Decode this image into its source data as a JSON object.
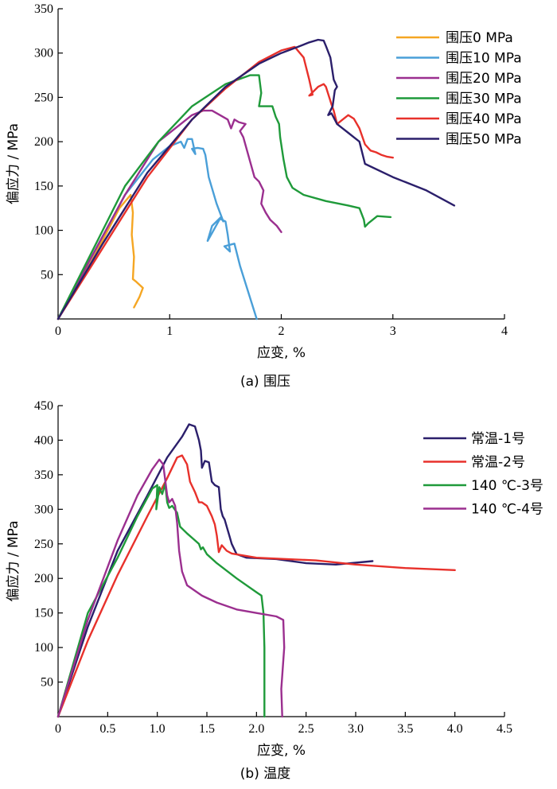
{
  "chart_data": [
    {
      "type": "line",
      "caption": "(a) 围压",
      "xlabel": "应变, %",
      "ylabel": "偏应力 / MPa",
      "xlim": [
        0,
        4
      ],
      "ylim": [
        0,
        350
      ],
      "xticks": [
        0,
        1,
        2,
        3,
        4
      ],
      "yticks": [
        50,
        100,
        150,
        200,
        250,
        300,
        350
      ],
      "xtick_labels": [
        "0",
        "1",
        "2",
        "3",
        "4"
      ],
      "ytick_labels": [
        "50",
        "100",
        "150",
        "200",
        "250",
        "300",
        "350"
      ],
      "legend_position": "top-right",
      "grid": false,
      "series": [
        {
          "name": "围压0 MPa",
          "color": "#f5a623",
          "x": [
            0,
            0.3,
            0.55,
            0.65,
            0.67,
            0.66,
            0.68,
            0.67,
            0.7,
            0.76,
            0.73,
            0.68
          ],
          "y": [
            0,
            65,
            125,
            140,
            120,
            95,
            70,
            45,
            42,
            35,
            25,
            13
          ]
        },
        {
          "name": "围压10 MPa",
          "color": "#4a9fd8",
          "x": [
            0,
            0.3,
            0.6,
            0.85,
            1.0,
            1.1,
            1.13,
            1.16,
            1.2,
            1.23,
            1.2,
            1.25,
            1.3,
            1.32,
            1.35,
            1.42,
            1.48,
            1.46,
            1.38,
            1.34,
            1.38,
            1.45,
            1.5,
            1.52,
            1.54,
            1.49,
            1.58,
            1.63,
            1.78
          ],
          "y": [
            0,
            70,
            140,
            180,
            195,
            200,
            193,
            203,
            203,
            186,
            192,
            193,
            192,
            185,
            160,
            130,
            110,
            115,
            105,
            88,
            97,
            113,
            110,
            95,
            76,
            82,
            85,
            60,
            0
          ]
        },
        {
          "name": "围压20 MPa",
          "color": "#9b2f8f",
          "x": [
            0,
            0.3,
            0.6,
            0.9,
            1.2,
            1.3,
            1.38,
            1.45,
            1.52,
            1.55,
            1.58,
            1.62,
            1.68,
            1.63,
            1.66,
            1.72,
            1.76,
            1.8,
            1.84,
            1.82,
            1.86,
            1.9,
            1.96,
            2.0
          ],
          "y": [
            0,
            70,
            140,
            200,
            230,
            235,
            235,
            230,
            225,
            215,
            225,
            222,
            220,
            212,
            205,
            178,
            160,
            155,
            145,
            130,
            120,
            112,
            105,
            98
          ]
        },
        {
          "name": "围压30 MPa",
          "color": "#1f9a3a",
          "x": [
            0,
            0.3,
            0.6,
            0.9,
            1.2,
            1.5,
            1.72,
            1.8,
            1.82,
            1.8,
            1.84,
            1.92,
            1.95,
            1.98,
            1.99,
            2.02,
            2.05,
            2.1,
            2.2,
            2.4,
            2.6,
            2.7,
            2.74,
            2.75,
            2.78,
            2.86,
            2.98
          ],
          "y": [
            0,
            75,
            150,
            200,
            240,
            265,
            275,
            275,
            255,
            240,
            240,
            240,
            228,
            220,
            205,
            180,
            160,
            148,
            140,
            133,
            128,
            125,
            112,
            104,
            108,
            116,
            115
          ]
        },
        {
          "name": "围压40 MPa",
          "color": "#e8312b",
          "x": [
            0,
            0.4,
            0.8,
            1.2,
            1.5,
            1.8,
            2.0,
            2.12,
            2.2,
            2.25,
            2.28,
            2.25,
            2.33,
            2.38,
            2.4,
            2.43,
            2.45,
            2.47,
            2.5,
            2.55,
            2.6,
            2.65,
            2.7,
            2.75,
            2.8,
            2.85,
            2.9,
            2.95,
            3.0
          ],
          "y": [
            0,
            80,
            160,
            225,
            260,
            290,
            303,
            307,
            295,
            270,
            253,
            252,
            262,
            265,
            262,
            250,
            242,
            235,
            220,
            225,
            230,
            226,
            215,
            197,
            190,
            188,
            185,
            183,
            182
          ]
        },
        {
          "name": "围压50 MPa",
          "color": "#2b1f6b",
          "x": [
            0,
            0.4,
            0.8,
            1.2,
            1.5,
            1.8,
            2.0,
            2.15,
            2.25,
            2.33,
            2.38,
            2.4,
            2.44,
            2.47,
            2.5,
            2.48,
            2.46,
            2.42,
            2.45,
            2.5,
            2.55,
            2.6,
            2.65,
            2.7,
            2.75,
            3.0,
            3.3,
            3.55
          ],
          "y": [
            0,
            85,
            165,
            225,
            262,
            288,
            300,
            307,
            312,
            315,
            314,
            308,
            295,
            270,
            262,
            258,
            240,
            230,
            232,
            220,
            215,
            210,
            205,
            200,
            175,
            160,
            145,
            128
          ]
        }
      ]
    },
    {
      "type": "line",
      "caption": "(b) 温度",
      "xlabel": "应变, %",
      "ylabel": "偏应力 / MPa",
      "xlim": [
        0,
        4.5
      ],
      "ylim": [
        0,
        450
      ],
      "xticks": [
        0,
        0.5,
        1.0,
        1.5,
        2.0,
        2.5,
        3.0,
        3.5,
        4.0,
        4.5
      ],
      "yticks": [
        50,
        100,
        150,
        200,
        250,
        300,
        350,
        400,
        450
      ],
      "xtick_labels": [
        "0",
        "0.5",
        "1.0",
        "1.5",
        "2.0",
        "2.5",
        "3.0",
        "3.5",
        "4.0",
        "4.5"
      ],
      "ytick_labels": [
        "50",
        "100",
        "150",
        "200",
        "250",
        "300",
        "350",
        "400",
        "450"
      ],
      "legend_position": "top-right",
      "grid": false,
      "series": [
        {
          "name": "常温-1号",
          "color": "#2b1f6b",
          "x": [
            0,
            0.3,
            0.6,
            0.9,
            1.1,
            1.25,
            1.32,
            1.38,
            1.42,
            1.44,
            1.45,
            1.48,
            1.52,
            1.55,
            1.58,
            1.62,
            1.64,
            1.66,
            1.68,
            1.7,
            1.73,
            1.75,
            1.8,
            1.9,
            2.2,
            2.5,
            2.8,
            3.17
          ],
          "y": [
            0,
            130,
            240,
            320,
            375,
            405,
            423,
            420,
            400,
            385,
            360,
            370,
            368,
            340,
            335,
            332,
            300,
            290,
            285,
            275,
            260,
            250,
            235,
            230,
            228,
            222,
            220,
            225
          ]
        },
        {
          "name": "常温-2号",
          "color": "#e8312b",
          "x": [
            0,
            0.3,
            0.6,
            0.9,
            1.1,
            1.2,
            1.25,
            1.3,
            1.33,
            1.38,
            1.42,
            1.45,
            1.5,
            1.55,
            1.58,
            1.6,
            1.62,
            1.65,
            1.7,
            1.75,
            2.0,
            2.3,
            2.6,
            3.0,
            3.5,
            4.0
          ],
          "y": [
            0,
            110,
            205,
            290,
            345,
            375,
            378,
            365,
            340,
            325,
            310,
            310,
            305,
            290,
            278,
            262,
            238,
            248,
            240,
            236,
            230,
            228,
            226,
            220,
            215,
            212
          ]
        },
        {
          "name": "140 ℃-3号",
          "color": "#1f9a3a",
          "x": [
            0,
            0.3,
            0.6,
            0.8,
            0.95,
            1.0,
            0.99,
            1.02,
            1.05,
            1.08,
            1.1,
            1.12,
            1.15,
            1.2,
            1.23,
            1.3,
            1.38,
            1.42,
            1.44,
            1.46,
            1.5,
            1.6,
            1.8,
            2.0,
            2.05,
            2.07,
            2.08,
            2.08
          ],
          "y": [
            0,
            150,
            230,
            290,
            330,
            335,
            300,
            332,
            322,
            337,
            310,
            302,
            305,
            295,
            275,
            265,
            255,
            250,
            242,
            245,
            235,
            222,
            200,
            180,
            175,
            150,
            100,
            0
          ]
        },
        {
          "name": "140 ℃-4号",
          "color": "#9b2f8f",
          "x": [
            0,
            0.3,
            0.6,
            0.8,
            0.95,
            1.02,
            1.06,
            1.1,
            1.12,
            1.15,
            1.18,
            1.2,
            1.22,
            1.25,
            1.3,
            1.45,
            1.6,
            1.8,
            2.0,
            2.2,
            2.27,
            2.28,
            2.25,
            2.26
          ],
          "y": [
            0,
            140,
            255,
            320,
            358,
            372,
            365,
            320,
            310,
            315,
            305,
            280,
            240,
            210,
            190,
            175,
            165,
            155,
            150,
            145,
            140,
            100,
            40,
            0
          ]
        }
      ]
    }
  ]
}
